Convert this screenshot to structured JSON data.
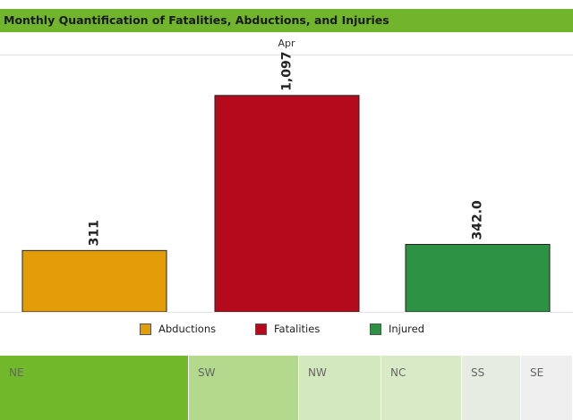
{
  "header": {
    "title": "Monthly Quantification of Fatalities, Abductions, and Injuries"
  },
  "chart_data": {
    "type": "bar",
    "facet": "Apr",
    "categories": [
      "Abductions",
      "Fatalities",
      "Injured"
    ],
    "values": [
      311,
      1097,
      342
    ],
    "data_labels": [
      "311",
      "1,097",
      "342.0"
    ],
    "colors": [
      "#e39d09",
      "#b5091c",
      "#2e9244"
    ],
    "ylim": [
      0,
      1300
    ],
    "legend_position": "bottom",
    "grid": false
  },
  "legend": {
    "items": [
      {
        "label": "Abductions",
        "color": "#e39d09"
      },
      {
        "label": "Fatalities",
        "color": "#b5091c"
      },
      {
        "label": "Injured",
        "color": "#2e9244"
      }
    ]
  },
  "regions": {
    "tiles": [
      {
        "label": "NE",
        "color": "#72b82b"
      },
      {
        "label": "SW",
        "color": "#b3d98c"
      },
      {
        "label": "NW",
        "color": "#d3e8bf"
      },
      {
        "label": "NC",
        "color": "#d8ebc6"
      },
      {
        "label": "SS",
        "color": "#e6ece1"
      },
      {
        "label": "SE",
        "color": "#efefef"
      }
    ]
  }
}
